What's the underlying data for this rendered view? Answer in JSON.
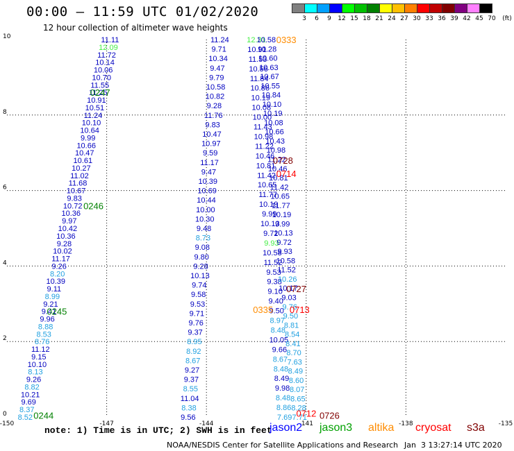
{
  "header": {
    "title": "00:00 – 11:59 UTC 01/02/2020",
    "subtitle": "12 hour collection of altimeter wave heights"
  },
  "legend": {
    "colors": [
      "#808080",
      "#00ffff",
      "#00a0ff",
      "#0000ff",
      "#00ff00",
      "#00c000",
      "#008000",
      "#ffff00",
      "#ffc000",
      "#ff8000",
      "#ff0000",
      "#c00000",
      "#800000",
      "#800080",
      "#ff80ff",
      "#000000"
    ],
    "labels": [
      "3",
      "6",
      "9",
      "12",
      "15",
      "18",
      "21",
      "24",
      "27",
      "30",
      "33",
      "36",
      "39",
      "42",
      "45",
      "70",
      "(ft)"
    ]
  },
  "footer": {
    "note": "note: 1) Time is in UTC; 2) SWH is in feet",
    "satellites": [
      {
        "name": "jason2",
        "color": "#0000ff"
      },
      {
        "name": "jason3",
        "color": "#00a000"
      },
      {
        "name": "altika",
        "color": "#ff8c00"
      },
      {
        "name": "cryosat",
        "color": "#ff0000"
      },
      {
        "name": "s3a",
        "color": "#800000"
      }
    ],
    "credit": "NOAA/NESDIS Center for Satellite Applications and Research",
    "generated": "Jan  3 13:27:14 UTC 2020"
  },
  "chart_data": {
    "type": "scatter",
    "x_ticks": [
      "-150",
      "-147",
      "-144",
      "-141",
      "-138",
      "-135"
    ],
    "y_ticks": [
      "0",
      "2",
      "4",
      "6",
      "8",
      "10"
    ],
    "xlim": [
      -150,
      -135
    ],
    "ylim": [
      0,
      10
    ],
    "grid": true,
    "time_labels": [
      {
        "x": -147.5,
        "y": 8.6,
        "text": "0247",
        "color": "#008000"
      },
      {
        "x": -147.7,
        "y": 5.6,
        "text": "0246",
        "color": "#008000"
      },
      {
        "x": -148.8,
        "y": 2.8,
        "text": "0245",
        "color": "#008000"
      },
      {
        "x": -149.2,
        "y": 0.05,
        "text": "0244",
        "color": "#008000"
      },
      {
        "x": -141.9,
        "y": 10.0,
        "text": "0333",
        "color": "#ff8c00"
      },
      {
        "x": -142.6,
        "y": 2.85,
        "text": "0335",
        "color": "#ff8c00"
      },
      {
        "x": -142.0,
        "y": 6.8,
        "text": "0728",
        "color": "#800000"
      },
      {
        "x": -141.6,
        "y": 3.4,
        "text": "0727",
        "color": "#800000"
      },
      {
        "x": -140.6,
        "y": 0.05,
        "text": "0726",
        "color": "#800000"
      },
      {
        "x": -141.9,
        "y": 6.45,
        "text": "0714",
        "color": "#ff0000"
      },
      {
        "x": -141.5,
        "y": 2.85,
        "text": "0713",
        "color": "#ff0000"
      },
      {
        "x": -141.3,
        "y": 0.1,
        "text": "0712",
        "color": "#ff0000"
      }
    ],
    "tracks": [
      {
        "name": "jason3_track1",
        "x_top": -146.9,
        "x_bottom": -149.45,
        "y_top": 10.0,
        "y_bottom": 0.0,
        "values": [
          "11.11",
          "12.09",
          "11.72",
          "10.14",
          "10.06",
          "10.70",
          "11.55",
          "11.25",
          "10.91",
          "10.51",
          "11.24",
          "10.10",
          "10.64",
          "9.99",
          "10.66",
          "10.47",
          "10.61",
          "10.27",
          "11.02",
          "11.68",
          "10.67",
          "9.83",
          "10.72",
          "10.36",
          "9.97",
          "10.42",
          "10.36",
          "9.28",
          "10.02",
          "11.17",
          "9.26",
          "8.20",
          "10.39",
          "9.11",
          "8.99",
          "9.21",
          "9.41",
          "9.96",
          "8.88",
          "8.53",
          "8.76",
          "11.12",
          "9.15",
          "10.10",
          "8.13",
          "9.26",
          "8.82",
          "10.21",
          "9.69",
          "8.37",
          "8.52"
        ],
        "colors": [
          "#0000c0",
          "#44ee44",
          "#0000c0",
          "#0000c0",
          "#0000c0",
          "#0000c0",
          "#0000c0",
          "#0000c0",
          "#0000c0",
          "#0000c0",
          "#0000c0",
          "#0000c0",
          "#0000c0",
          "#0000c0",
          "#0000c0",
          "#0000c0",
          "#0000c0",
          "#0000c0",
          "#0000c0",
          "#0000c0",
          "#0000c0",
          "#0000c0",
          "#0000c0",
          "#0000c0",
          "#0000c0",
          "#0000c0",
          "#0000c0",
          "#0000c0",
          "#0000c0",
          "#0000c0",
          "#0000c0",
          "#20a0e0",
          "#0000c0",
          "#0000c0",
          "#20a0e0",
          "#0000c0",
          "#0000c0",
          "#0000c0",
          "#20a0e0",
          "#20a0e0",
          "#20a0e0",
          "#0000c0",
          "#0000c0",
          "#0000c0",
          "#20a0e0",
          "#0000c0",
          "#20a0e0",
          "#0000c0",
          "#0000c0",
          "#20a0e0",
          "#20a0e0"
        ]
      },
      {
        "name": "altika_track",
        "x_top": -143.6,
        "x_bottom": -144.55,
        "y_top": 10.0,
        "y_bottom": 0.0,
        "values": [
          "11.24",
          "9.71",
          "10.34",
          "9.47",
          "9.79",
          "10.58",
          "10.82",
          "9.28",
          "11.76",
          "9.83",
          "10.47",
          "10.97",
          "9.59",
          "11.17",
          "9.47",
          "10.39",
          "10.69",
          "10.44",
          "10.00",
          "10.30",
          "9.48",
          "8.73",
          "9.08",
          "9.80",
          "9.28",
          "10.13",
          "9.74",
          "9.58",
          "9.53",
          "9.71",
          "9.76",
          "9.37",
          "8.95",
          "8.92",
          "8.67",
          "9.27",
          "9.37",
          "8.55",
          "11.04",
          "8.38",
          "9.56"
        ],
        "colors": [
          "#0000c0",
          "#0000c0",
          "#0000c0",
          "#0000c0",
          "#0000c0",
          "#0000c0",
          "#0000c0",
          "#0000c0",
          "#0000c0",
          "#0000c0",
          "#0000c0",
          "#0000c0",
          "#0000c0",
          "#0000c0",
          "#0000c0",
          "#0000c0",
          "#0000c0",
          "#0000c0",
          "#0000c0",
          "#0000c0",
          "#0000c0",
          "#20a0e0",
          "#0000c0",
          "#0000c0",
          "#0000c0",
          "#0000c0",
          "#0000c0",
          "#0000c0",
          "#0000c0",
          "#0000c0",
          "#0000c0",
          "#0000c0",
          "#20a0e0",
          "#20a0e0",
          "#20a0e0",
          "#0000c0",
          "#0000c0",
          "#20a0e0",
          "#0000c0",
          "#20a0e0",
          "#0000c0"
        ]
      },
      {
        "name": "cryosat_track",
        "x_top": -142.5,
        "x_bottom": -141.65,
        "y_top": 10.0,
        "y_bottom": 0.0,
        "values": [
          "12.31",
          "10.91",
          "11.53",
          "10.56",
          "11.84",
          "10.86",
          "10.19",
          "10.08",
          "10.00",
          "11.43",
          "10.98",
          "11.22",
          "10.46",
          "10.81",
          "11.42",
          "10.65",
          "11.77",
          "10.19",
          "9.99",
          "10.13",
          "9.72",
          "9.93",
          "10.58",
          "11.52",
          "9.53",
          "9.38",
          "9.10",
          "9.40",
          "9.50",
          "8.97",
          "8.48",
          "10.05",
          "9.66",
          "8.67",
          "8.48",
          "8.49",
          "9.98",
          "8.48",
          "8.86",
          "7.69"
        ],
        "colors": [
          "#44ee44",
          "#0000c0",
          "#0000c0",
          "#0000c0",
          "#0000c0",
          "#0000c0",
          "#0000c0",
          "#0000c0",
          "#0000c0",
          "#0000c0",
          "#0000c0",
          "#0000c0",
          "#0000c0",
          "#0000c0",
          "#0000c0",
          "#0000c0",
          "#0000c0",
          "#0000c0",
          "#0000c0",
          "#0000c0",
          "#0000c0",
          "#44ee44",
          "#0000c0",
          "#0000c0",
          "#0000c0",
          "#0000c0",
          "#0000c0",
          "#0000c0",
          "#0000c0",
          "#20a0e0",
          "#20a0e0",
          "#0000c0",
          "#0000c0",
          "#20a0e0",
          "#20a0e0",
          "#0000c0",
          "#0000c0",
          "#20a0e0",
          "#20a0e0",
          "#20a0e0"
        ]
      },
      {
        "name": "s3a_track",
        "x_top": -142.2,
        "x_bottom": -141.2,
        "y_top": 10.0,
        "y_bottom": 0.0,
        "values": [
          "10.58",
          "10.28",
          "10.60",
          "10.63",
          "10.67",
          "10.55",
          "10.84",
          "10.10",
          "10.19",
          "10.08",
          "10.66",
          "10.43",
          "10.98",
          "11.22",
          "10.46",
          "10.81",
          "11.42",
          "10.65",
          "11.77",
          "10.19",
          "9.99",
          "10.13",
          "9.72",
          "9.93",
          "10.58",
          "11.52",
          "10.26",
          "10.17",
          "9.03",
          "9.76",
          "9.50",
          "8.81",
          "8.54",
          "8.41",
          "8.70",
          "7.63",
          "8.49",
          "8.60",
          "8.07",
          "8.65",
          "8.28",
          "7.71"
        ],
        "colors": [
          "#0000c0",
          "#0000c0",
          "#0000c0",
          "#0000c0",
          "#0000c0",
          "#0000c0",
          "#0000c0",
          "#0000c0",
          "#0000c0",
          "#0000c0",
          "#0000c0",
          "#0000c0",
          "#0000c0",
          "#0000c0",
          "#0000c0",
          "#0000c0",
          "#0000c0",
          "#0000c0",
          "#0000c0",
          "#0000c0",
          "#0000c0",
          "#0000c0",
          "#0000c0",
          "#0000c0",
          "#0000c0",
          "#0000c0",
          "#20a0e0",
          "#0000c0",
          "#0000c0",
          "#20a0e0",
          "#20a0e0",
          "#20a0e0",
          "#20a0e0",
          "#20a0e0",
          "#20a0e0",
          "#20a0e0",
          "#20a0e0",
          "#20a0e0",
          "#20a0e0",
          "#20a0e0",
          "#20a0e0",
          "#20a0e0"
        ]
      }
    ]
  }
}
